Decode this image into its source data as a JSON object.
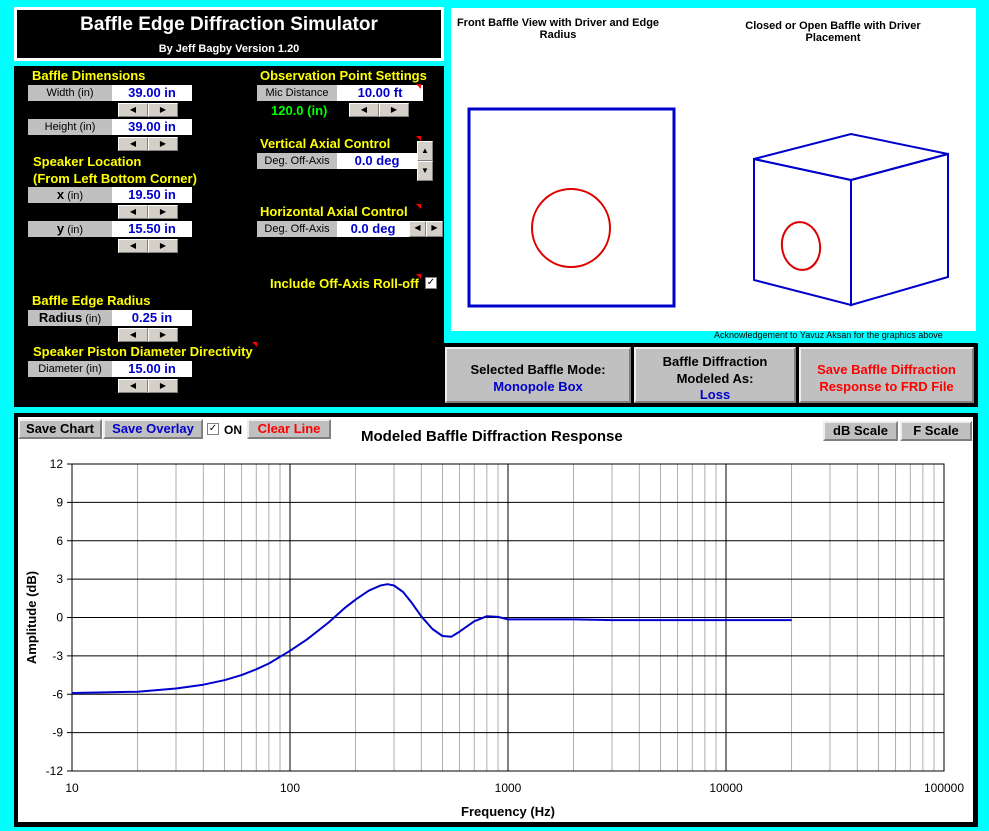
{
  "title": {
    "main": "Baffle Edge Diffraction Simulator",
    "byline": "By Jeff Bagby Version 1.20"
  },
  "baffle_dimensions": {
    "heading": "Baffle Dimensions",
    "width_label": "Width (in)",
    "width_value": "39.00 in",
    "height_label": "Height (in)",
    "height_value": "39.00 in"
  },
  "speaker_location": {
    "heading": "Speaker Location",
    "subheading": "(From Left Bottom Corner)",
    "x_label": "x",
    "x_unit": "(in)",
    "x_value": "19.50 in",
    "y_label": "y",
    "y_unit": "(in)",
    "y_value": "15.50 in"
  },
  "baffle_edge_radius": {
    "heading": "Baffle Edge Radius",
    "radius_label": "Radius",
    "radius_unit": "(in)",
    "radius_value": "0.25 in"
  },
  "piston": {
    "heading": "Speaker Piston Diameter Directivity",
    "diameter_label": "Diameter (in)",
    "diameter_value": "15.00 in"
  },
  "observation": {
    "heading": "Observation Point Settings",
    "mic_label": "Mic Distance",
    "mic_value": "10.00 ft",
    "mic_inches": "120.0 (in)"
  },
  "vertical_axial": {
    "heading": "Vertical Axial Control",
    "label": "Deg. Off-Axis",
    "value": "0.0 deg"
  },
  "horizontal_axial": {
    "heading": "Horizontal Axial Control",
    "label": "Deg. Off-Axis",
    "value": "0.0 deg"
  },
  "rolloff": {
    "label": "Include Off-Axis Roll-off",
    "checked": "✓"
  },
  "graphics": {
    "front_caption": "Front Baffle View with Driver and Edge Radius",
    "box_caption": "Closed or Open Baffle with Driver Placement",
    "acknowledgement": "Acknowledgement to Yavuz Aksan for the graphics above"
  },
  "mode_bar": {
    "selected_label": "Selected Baffle Mode:",
    "selected_value": "Monopole Box",
    "modeled_label": "Baffle Diffraction Modeled As:",
    "modeled_value": "Loss",
    "save_label": "Save Baffle Diffraction Response to FRD File"
  },
  "chart_toolbar": {
    "save_chart": "Save Chart",
    "save_overlay": "Save Overlay",
    "on_check": "✓",
    "on_label": "ON",
    "clear_line": "Clear Line",
    "db_scale": "dB Scale",
    "f_scale": "F Scale"
  },
  "colors": {
    "background": "#00ffff",
    "panel": "#000000",
    "heading": "#ffff00",
    "value": "#0000cc",
    "curve": "#0000cc",
    "driver": "#dd0000"
  },
  "chart_data": {
    "type": "line",
    "title": "Modeled Baffle Diffraction Response",
    "xlabel": "Frequency (Hz)",
    "ylabel": "Amplitude (dB)",
    "x_scale": "log",
    "xlim": [
      10,
      100000
    ],
    "ylim": [
      -12,
      12
    ],
    "x_ticks": [
      10,
      100,
      1000,
      10000,
      100000
    ],
    "x_tick_labels": [
      "10",
      "100",
      "1000",
      "10000",
      "100000"
    ],
    "y_ticks": [
      -12,
      -9,
      -6,
      -3,
      0,
      3,
      6,
      9,
      12
    ],
    "y_tick_labels": [
      "-12",
      "-9",
      "-6",
      "-3",
      "0",
      "3",
      "6",
      "9",
      "12"
    ],
    "grid": true,
    "series": [
      {
        "x": [
          10,
          15,
          20,
          30,
          40,
          50,
          60,
          70,
          80,
          100,
          120,
          150,
          180,
          200,
          230,
          260,
          280,
          300,
          330,
          360,
          400,
          450,
          500,
          550,
          600,
          700,
          800,
          900,
          1000,
          1200,
          1500,
          2000,
          3000,
          5000,
          10000,
          20000
        ],
        "y": [
          -5.9,
          -5.85,
          -5.8,
          -5.55,
          -5.25,
          -4.9,
          -4.5,
          -4.05,
          -3.6,
          -2.6,
          -1.7,
          -0.4,
          0.8,
          1.4,
          2.1,
          2.5,
          2.6,
          2.5,
          2.0,
          1.2,
          0.1,
          -0.9,
          -1.45,
          -1.5,
          -1.1,
          -0.3,
          0.1,
          0.05,
          -0.15,
          -0.15,
          -0.15,
          -0.15,
          -0.2,
          -0.2,
          -0.2,
          -0.2
        ]
      }
    ]
  }
}
